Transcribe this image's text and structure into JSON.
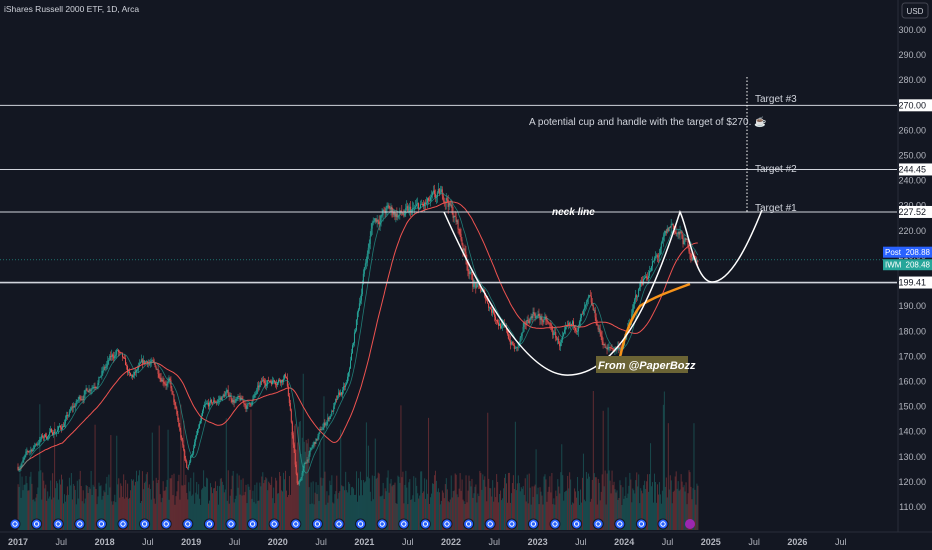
{
  "header": {
    "title": "iShares Russell 2000 ETF, 1D, Arca",
    "currency": "USD"
  },
  "chart_data": {
    "type": "candlestick",
    "y_ticks": [
      110,
      120,
      130,
      140,
      150,
      160,
      170,
      180,
      190,
      200,
      210,
      220,
      230,
      240,
      250,
      260,
      270,
      280,
      290,
      300
    ],
    "ylim": [
      105,
      303
    ],
    "x_ticks": [
      "2017",
      "Jul",
      "2018",
      "Jul",
      "2019",
      "Jul",
      "2020",
      "Jul",
      "2021",
      "Jul",
      "2022",
      "Jul",
      "2023",
      "Jul",
      "2024",
      "Jul",
      "2025",
      "Jul",
      "2026",
      "Jul"
    ],
    "price_path": [
      [
        0,
        126
      ],
      [
        0.5,
        137
      ],
      [
        1.0,
        142
      ],
      [
        1.5,
        155
      ],
      [
        2.0,
        165
      ],
      [
        2.3,
        172
      ],
      [
        2.6,
        160
      ],
      [
        3.0,
        168
      ],
      [
        3.5,
        160
      ],
      [
        3.9,
        125
      ],
      [
        4.3,
        148
      ],
      [
        4.8,
        155
      ],
      [
        5.3,
        150
      ],
      [
        5.7,
        160
      ],
      [
        6.2,
        163
      ],
      [
        6.45,
        118
      ],
      [
        6.7,
        130
      ],
      [
        7.3,
        150
      ],
      [
        7.6,
        158
      ],
      [
        8.0,
        205
      ],
      [
        8.2,
        224
      ],
      [
        8.5,
        228
      ],
      [
        9.0,
        226
      ],
      [
        9.5,
        230
      ],
      [
        9.9,
        234
      ],
      [
        10.15,
        222
      ],
      [
        10.5,
        200
      ],
      [
        11.0,
        188
      ],
      [
        11.5,
        172
      ],
      [
        11.9,
        188
      ],
      [
        12.2,
        183
      ],
      [
        12.5,
        175
      ],
      [
        12.8,
        180
      ],
      [
        13.2,
        190
      ],
      [
        13.6,
        172
      ],
      [
        14.0,
        175
      ],
      [
        14.4,
        200
      ],
      [
        14.8,
        210
      ],
      [
        15.1,
        222
      ],
      [
        15.4,
        215
      ],
      [
        15.7,
        208
      ]
    ],
    "annotations": {
      "target_3": "Target #3",
      "target_2": "Target #2",
      "target_1": "Target #1",
      "neck": "neck line",
      "note": "A potential cup and handle with the target of $270. ☕",
      "credit": "From @PaperBozz"
    },
    "levels": [
      {
        "value": 270.0,
        "label": "270.00",
        "kind": "target"
      },
      {
        "value": 244.45,
        "label": "244.45",
        "kind": "target"
      },
      {
        "value": 227.52,
        "label": "227.52",
        "kind": "neck"
      },
      {
        "value": 199.41,
        "label": "199.41",
        "kind": "support"
      }
    ],
    "price_badges": [
      {
        "name": "Post",
        "value": "208.88",
        "color": "#2962ff"
      },
      {
        "name": "IWM",
        "value": "208.48",
        "color": "#26a69a"
      }
    ],
    "colors": {
      "up": "#26a69a",
      "down": "#ef5350",
      "background": "#131722",
      "ma_red": "#ef5350",
      "ma_green": "#26a69a",
      "ma_orange": "#f7931a"
    }
  }
}
